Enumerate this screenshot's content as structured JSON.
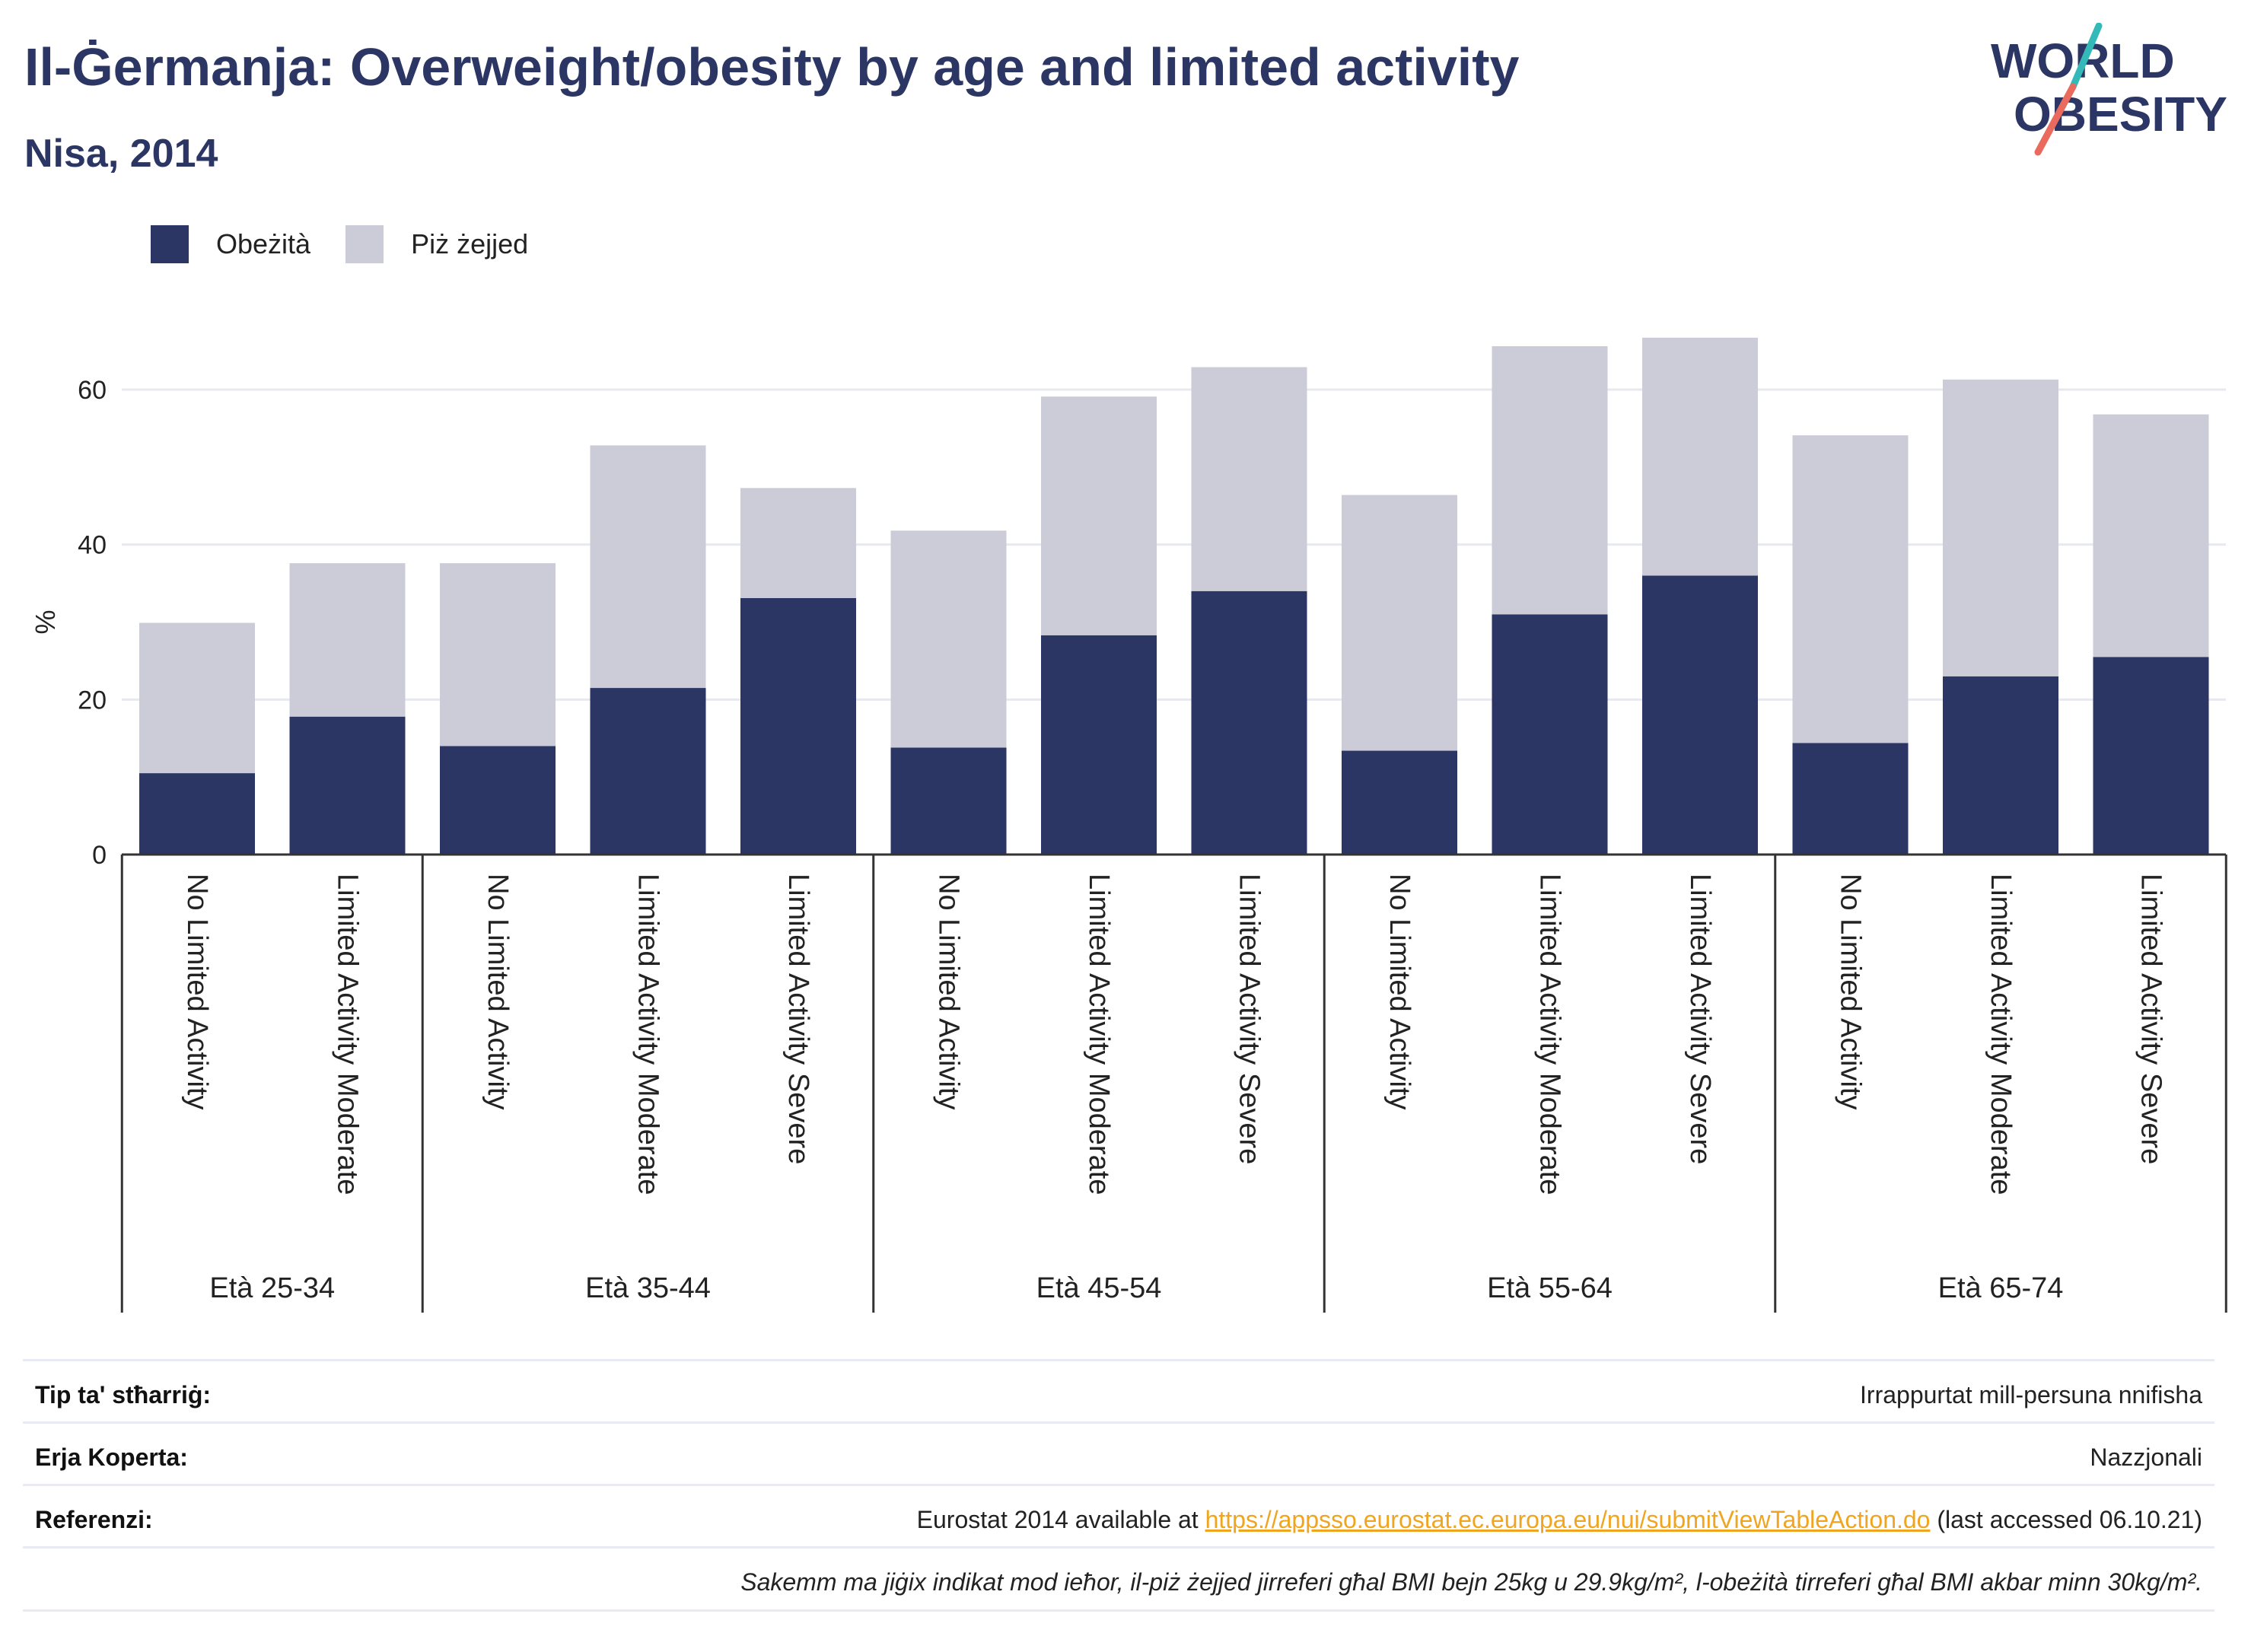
{
  "header": {
    "title": "Il-Ġermanja: Overweight/obesity by age and limited activity",
    "subtitle": "Nisa, 2014"
  },
  "logo": {
    "line1": "WORLD",
    "line2": "OBESITY"
  },
  "legend": [
    {
      "label": "Obeżità",
      "color": "#2b3664"
    },
    {
      "label": "Piż żejjed",
      "color": "#cbccd8"
    }
  ],
  "chart_data": {
    "type": "bar",
    "stacked": true,
    "ylabel": "%",
    "ylim": [
      0,
      70
    ],
    "yticks": [
      0,
      20,
      40,
      60
    ],
    "grid": true,
    "legend_position": "top-left",
    "groups": [
      {
        "label": "Età 25-34",
        "bars": [
          {
            "category": "No Limited Activity",
            "obesity": 10.5,
            "overweight": 19.4
          },
          {
            "category": "Limited Activity Moderate",
            "obesity": 17.8,
            "overweight": 19.8
          }
        ]
      },
      {
        "label": "Età 35-44",
        "bars": [
          {
            "category": "No Limited Activity",
            "obesity": 14.0,
            "overweight": 23.6
          },
          {
            "category": "Limited Activity Moderate",
            "obesity": 21.5,
            "overweight": 31.3
          },
          {
            "category": "Limited Activity Severe",
            "obesity": 33.1,
            "overweight": 14.2
          }
        ]
      },
      {
        "label": "Età 45-54",
        "bars": [
          {
            "category": "No Limited Activity",
            "obesity": 13.8,
            "overweight": 28.0
          },
          {
            "category": "Limited Activity Moderate",
            "obesity": 28.3,
            "overweight": 30.8
          },
          {
            "category": "Limited Activity Severe",
            "obesity": 34.0,
            "overweight": 28.9
          }
        ]
      },
      {
        "label": "Età 55-64",
        "bars": [
          {
            "category": "No Limited Activity",
            "obesity": 13.4,
            "overweight": 33.0
          },
          {
            "category": "Limited Activity Moderate",
            "obesity": 31.0,
            "overweight": 34.6
          },
          {
            "category": "Limited Activity Severe",
            "obesity": 36.0,
            "overweight": 30.7
          }
        ]
      },
      {
        "label": "Età 65-74",
        "bars": [
          {
            "category": "No Limited Activity",
            "obesity": 14.4,
            "overweight": 39.7
          },
          {
            "category": "Limited Activity Moderate",
            "obesity": 23.0,
            "overweight": 38.3
          },
          {
            "category": "Limited Activity Severe",
            "obesity": 25.5,
            "overweight": 31.3
          }
        ]
      }
    ]
  },
  "info": {
    "survey_type_label": "Tip ta' stħarriġ:",
    "survey_type_value": "Irrappurtat mill-persuna nnifisha",
    "area_label": "Erja Koperta:",
    "area_value": "Nazzjonali",
    "references_label": "Referenzi:",
    "references_prefix": "Eurostat 2014 available at ",
    "references_link": "https://appsso.eurostat.ec.europa.eu/nui/submitViewTableAction.do",
    "references_suffix": " (last accessed 06.10.21)",
    "note": "Sakemm ma jiġix indikat mod ieħor, il-piż żejjed jirreferi għal BMI bejn 25kg u 29.9kg/m², l-obeżità tirreferi għal BMI akbar minn 30kg/m²."
  }
}
